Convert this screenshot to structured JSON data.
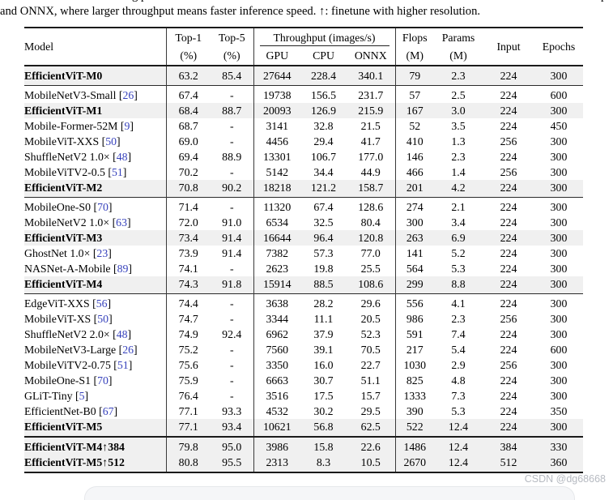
{
  "caption": "and ONNX, where larger throughput means faster inference speed. ↑: finetune with higher resolution.",
  "top_fragments": {
    "left": "g p",
    "right": "p"
  },
  "watermark": "CSDN @dg68668",
  "colors": {
    "highlight": "#f0f0f0",
    "cite_blue": "#3742bc",
    "rule": "#1b1b1b"
  },
  "table": {
    "header": {
      "model": "Model",
      "top1": "Top-1",
      "top1_unit": "(%)",
      "top5": "Top-5",
      "top5_unit": "(%)",
      "throughput": "Throughput (images/s)",
      "gpu": "GPU",
      "cpu": "CPU",
      "onnx": "ONNX",
      "flops": "Flops",
      "flops_unit": "(M)",
      "params": "Params",
      "params_unit": "(M)",
      "input": "Input",
      "epochs": "Epochs"
    },
    "groups": [
      {
        "thick_top": false,
        "rows": [
          {
            "model": "EfficientViT-M0",
            "cite": null,
            "bold": true,
            "highlight": true,
            "cells": [
              "63.2",
              "85.4",
              "27644",
              "228.4",
              "340.1",
              "79",
              "2.3",
              "224",
              "300"
            ]
          }
        ]
      },
      {
        "thick_top": false,
        "rows": [
          {
            "model": "MobileNetV3-Small",
            "cite": "26",
            "bold": false,
            "highlight": false,
            "cells": [
              "67.4",
              "-",
              "19738",
              "156.5",
              "231.7",
              "57",
              "2.5",
              "224",
              "600"
            ]
          },
          {
            "model": "EfficientViT-M1",
            "cite": null,
            "bold": true,
            "highlight": true,
            "cells": [
              "68.4",
              "88.7",
              "20093",
              "126.9",
              "215.9",
              "167",
              "3.0",
              "224",
              "300"
            ]
          },
          {
            "model": "Mobile-Former-52M",
            "cite": "9",
            "bold": false,
            "highlight": false,
            "cells": [
              "68.7",
              "-",
              "3141",
              "32.8",
              "21.5",
              "52",
              "3.5",
              "224",
              "450"
            ]
          },
          {
            "model": "MobileViT-XXS",
            "cite": "50",
            "bold": false,
            "highlight": false,
            "cells": [
              "69.0",
              "-",
              "4456",
              "29.4",
              "41.7",
              "410",
              "1.3",
              "256",
              "300"
            ]
          },
          {
            "model": "ShuffleNetV2 1.0×",
            "cite": "48",
            "bold": false,
            "highlight": false,
            "cells": [
              "69.4",
              "88.9",
              "13301",
              "106.7",
              "177.0",
              "146",
              "2.3",
              "224",
              "300"
            ]
          },
          {
            "model": "MobileViTV2-0.5",
            "cite": "51",
            "bold": false,
            "highlight": false,
            "cells": [
              "70.2",
              "-",
              "5142",
              "34.4",
              "44.9",
              "466",
              "1.4",
              "256",
              "300"
            ]
          },
          {
            "model": "EfficientViT-M2",
            "cite": null,
            "bold": true,
            "highlight": true,
            "cells": [
              "70.8",
              "90.2",
              "18218",
              "121.2",
              "158.7",
              "201",
              "4.2",
              "224",
              "300"
            ]
          }
        ]
      },
      {
        "thick_top": false,
        "rows": [
          {
            "model": "MobileOne-S0",
            "cite": "70",
            "bold": false,
            "highlight": false,
            "cells": [
              "71.4",
              "-",
              "11320",
              "67.4",
              "128.6",
              "274",
              "2.1",
              "224",
              "300"
            ]
          },
          {
            "model": "MobileNetV2 1.0×",
            "cite": "63",
            "bold": false,
            "highlight": false,
            "cells": [
              "72.0",
              "91.0",
              "6534",
              "32.5",
              "80.4",
              "300",
              "3.4",
              "224",
              "300"
            ]
          },
          {
            "model": "EfficientViT-M3",
            "cite": null,
            "bold": true,
            "highlight": true,
            "cells": [
              "73.4",
              "91.4",
              "16644",
              "96.4",
              "120.8",
              "263",
              "6.9",
              "224",
              "300"
            ]
          },
          {
            "model": "GhostNet 1.0×",
            "cite": "23",
            "bold": false,
            "highlight": false,
            "cells": [
              "73.9",
              "91.4",
              "7382",
              "57.3",
              "77.0",
              "141",
              "5.2",
              "224",
              "300"
            ]
          },
          {
            "model": "NASNet-A-Mobile",
            "cite": "89",
            "bold": false,
            "highlight": false,
            "cells": [
              "74.1",
              "-",
              "2623",
              "19.8",
              "25.5",
              "564",
              "5.3",
              "224",
              "300"
            ]
          },
          {
            "model": "EfficientViT-M4",
            "cite": null,
            "bold": true,
            "highlight": true,
            "cells": [
              "74.3",
              "91.8",
              "15914",
              "88.5",
              "108.6",
              "299",
              "8.8",
              "224",
              "300"
            ]
          }
        ]
      },
      {
        "thick_top": false,
        "rows": [
          {
            "model": "EdgeViT-XXS",
            "cite": "56",
            "bold": false,
            "highlight": false,
            "cells": [
              "74.4",
              "-",
              "3638",
              "28.2",
              "29.6",
              "556",
              "4.1",
              "224",
              "300"
            ]
          },
          {
            "model": "MobileViT-XS",
            "cite": "50",
            "bold": false,
            "highlight": false,
            "cells": [
              "74.7",
              "-",
              "3344",
              "11.1",
              "20.5",
              "986",
              "2.3",
              "256",
              "300"
            ]
          },
          {
            "model": "ShuffleNetV2 2.0×",
            "cite": "48",
            "bold": false,
            "highlight": false,
            "cells": [
              "74.9",
              "92.4",
              "6962",
              "37.9",
              "52.3",
              "591",
              "7.4",
              "224",
              "300"
            ]
          },
          {
            "model": "MobileNetV3-Large",
            "cite": "26",
            "bold": false,
            "highlight": false,
            "cells": [
              "75.2",
              "-",
              "7560",
              "39.1",
              "70.5",
              "217",
              "5.4",
              "224",
              "600"
            ]
          },
          {
            "model": "MobileViTV2-0.75",
            "cite": "51",
            "bold": false,
            "highlight": false,
            "cells": [
              "75.6",
              "-",
              "3350",
              "16.0",
              "22.7",
              "1030",
              "2.9",
              "256",
              "300"
            ]
          },
          {
            "model": "MobileOne-S1",
            "cite": "70",
            "bold": false,
            "highlight": false,
            "cells": [
              "75.9",
              "-",
              "6663",
              "30.7",
              "51.1",
              "825",
              "4.8",
              "224",
              "300"
            ]
          },
          {
            "model": "GLiT-Tiny",
            "cite": "5",
            "bold": false,
            "highlight": false,
            "cells": [
              "76.4",
              "-",
              "3516",
              "17.5",
              "15.7",
              "1333",
              "7.3",
              "224",
              "300"
            ]
          },
          {
            "model": "EfficientNet-B0",
            "cite": "67",
            "bold": false,
            "highlight": false,
            "cells": [
              "77.1",
              "93.3",
              "4532",
              "30.2",
              "29.5",
              "390",
              "5.3",
              "224",
              "350"
            ]
          },
          {
            "model": "EfficientViT-M5",
            "cite": null,
            "bold": true,
            "highlight": true,
            "cells": [
              "77.1",
              "93.4",
              "10621",
              "56.8",
              "62.5",
              "522",
              "12.4",
              "224",
              "300"
            ]
          }
        ]
      },
      {
        "thick_top": true,
        "rows": [
          {
            "model": "EfficientViT-M4↑384",
            "cite": null,
            "bold": true,
            "highlight": true,
            "cells": [
              "79.8",
              "95.0",
              "3986",
              "15.8",
              "22.6",
              "1486",
              "12.4",
              "384",
              "330"
            ]
          },
          {
            "model": "EfficientViT-M5↑512",
            "cite": null,
            "bold": true,
            "highlight": true,
            "cells": [
              "80.8",
              "95.5",
              "2313",
              "8.3",
              "10.5",
              "2670",
              "12.4",
              "512",
              "360"
            ]
          }
        ]
      }
    ]
  }
}
